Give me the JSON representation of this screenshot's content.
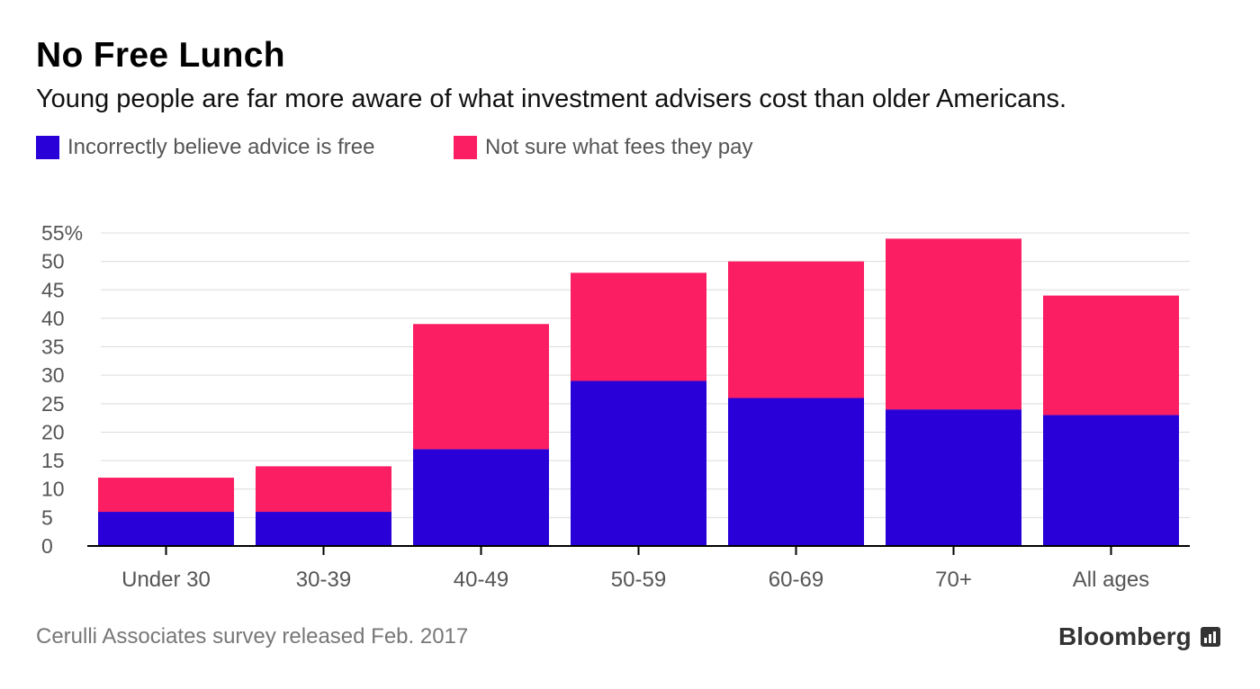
{
  "title": "No Free Lunch",
  "subtitle": "Young people are far more aware of what investment advisers cost than older Americans.",
  "legend": [
    {
      "label": "Incorrectly believe advice is free",
      "color": "#2a00d8"
    },
    {
      "label": "Not sure what fees they pay",
      "color": "#fb1e63"
    }
  ],
  "source": "Cerulli Associates survey released Feb. 2017",
  "brand": "Bloomberg",
  "chart_data": {
    "type": "bar",
    "stacked": true,
    "categories": [
      "Under 30",
      "30-39",
      "40-49",
      "50-59",
      "60-69",
      "70+",
      "All ages"
    ],
    "series": [
      {
        "name": "Incorrectly believe advice is free",
        "color": "#2a00d8",
        "values": [
          6,
          6,
          17,
          29,
          26,
          24,
          23
        ]
      },
      {
        "name": "Not sure what fees they pay",
        "color": "#fb1e63",
        "values": [
          6,
          8,
          22,
          19,
          24,
          30,
          21
        ]
      }
    ],
    "y_ticks": [
      "0",
      "5",
      "10",
      "15",
      "20",
      "25",
      "30",
      "35",
      "40",
      "45",
      "50",
      "55%"
    ],
    "ylim": [
      0,
      55
    ],
    "grid": true,
    "legend_position": "top-left"
  }
}
